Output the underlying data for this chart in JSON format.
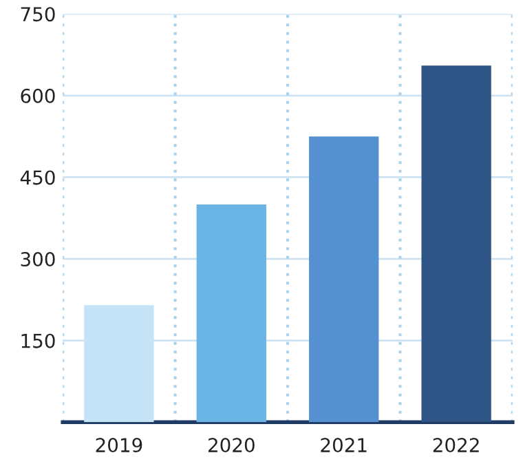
{
  "chart_data": {
    "type": "bar",
    "categories": [
      "2019",
      "2020",
      "2021",
      "2022"
    ],
    "values": [
      215,
      400,
      525,
      655
    ],
    "colors": [
      "#c5e3f7",
      "#6ab4e6",
      "#5590d0",
      "#2f5486"
    ],
    "ylim": [
      0,
      750
    ],
    "yticks": [
      150,
      300,
      450,
      600,
      750
    ],
    "grid": true
  }
}
